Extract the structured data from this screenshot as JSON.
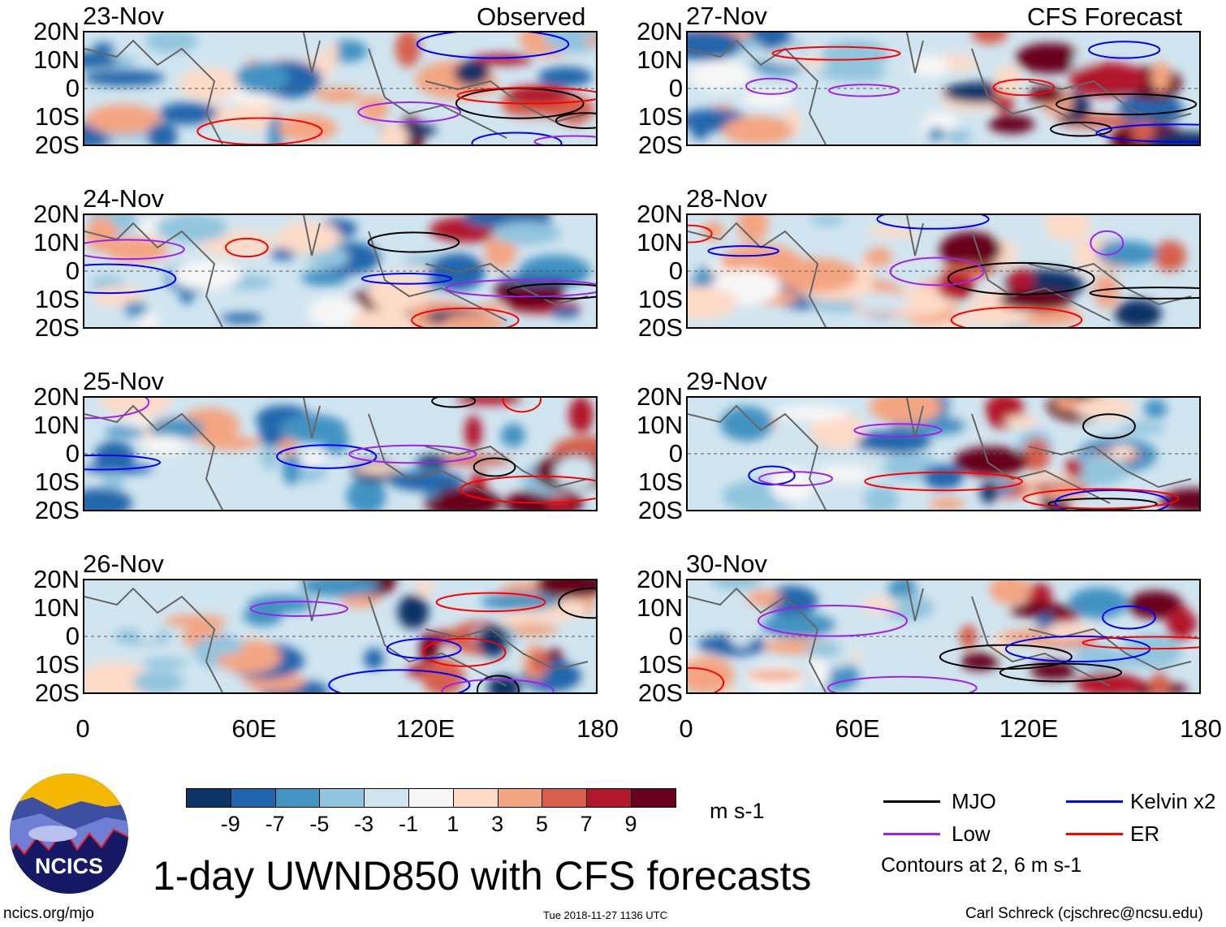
{
  "header": {
    "observed_label": "Observed",
    "forecast_label": "CFS Forecast"
  },
  "panels_left": [
    {
      "date": "23-Nov"
    },
    {
      "date": "24-Nov"
    },
    {
      "date": "25-Nov"
    },
    {
      "date": "26-Nov"
    }
  ],
  "panels_right": [
    {
      "date": "27-Nov"
    },
    {
      "date": "28-Nov"
    },
    {
      "date": "29-Nov"
    },
    {
      "date": "30-Nov"
    }
  ],
  "lat_labels": [
    "20N",
    "10N",
    "0",
    "10S",
    "20S"
  ],
  "lon_labels": [
    "0",
    "60E",
    "120E",
    "180"
  ],
  "colorbar": {
    "colors": [
      "#0b3366",
      "#2166ac",
      "#4393c3",
      "#92c5de",
      "#d1e5f0",
      "#f7f7f7",
      "#fddbc7",
      "#f4a582",
      "#d6604d",
      "#b2182b",
      "#67001f"
    ],
    "labels": [
      "-9",
      "-7",
      "-5",
      "-3",
      "-1",
      "1",
      "3",
      "5",
      "7",
      "9"
    ],
    "units": "m s-1"
  },
  "legend": {
    "items": [
      {
        "label": "MJO",
        "color": "#000000"
      },
      {
        "label": "Kelvin x2",
        "color": "#0000ff"
      },
      {
        "label": "Low",
        "color": "#a020f0"
      },
      {
        "label": "ER",
        "color": "#ff0000"
      }
    ],
    "contours_note": "Contours at 2, 6 m s-1"
  },
  "title": "1-day UWND850 with CFS forecasts",
  "logo": {
    "text": "NCICS"
  },
  "footer": {
    "url": "ncics.org/mjo",
    "timestamp": "Tue 2018-11-27 1136 UTC",
    "credit": "Carl Schreck (cjschrec@ncsu.edu)"
  }
}
